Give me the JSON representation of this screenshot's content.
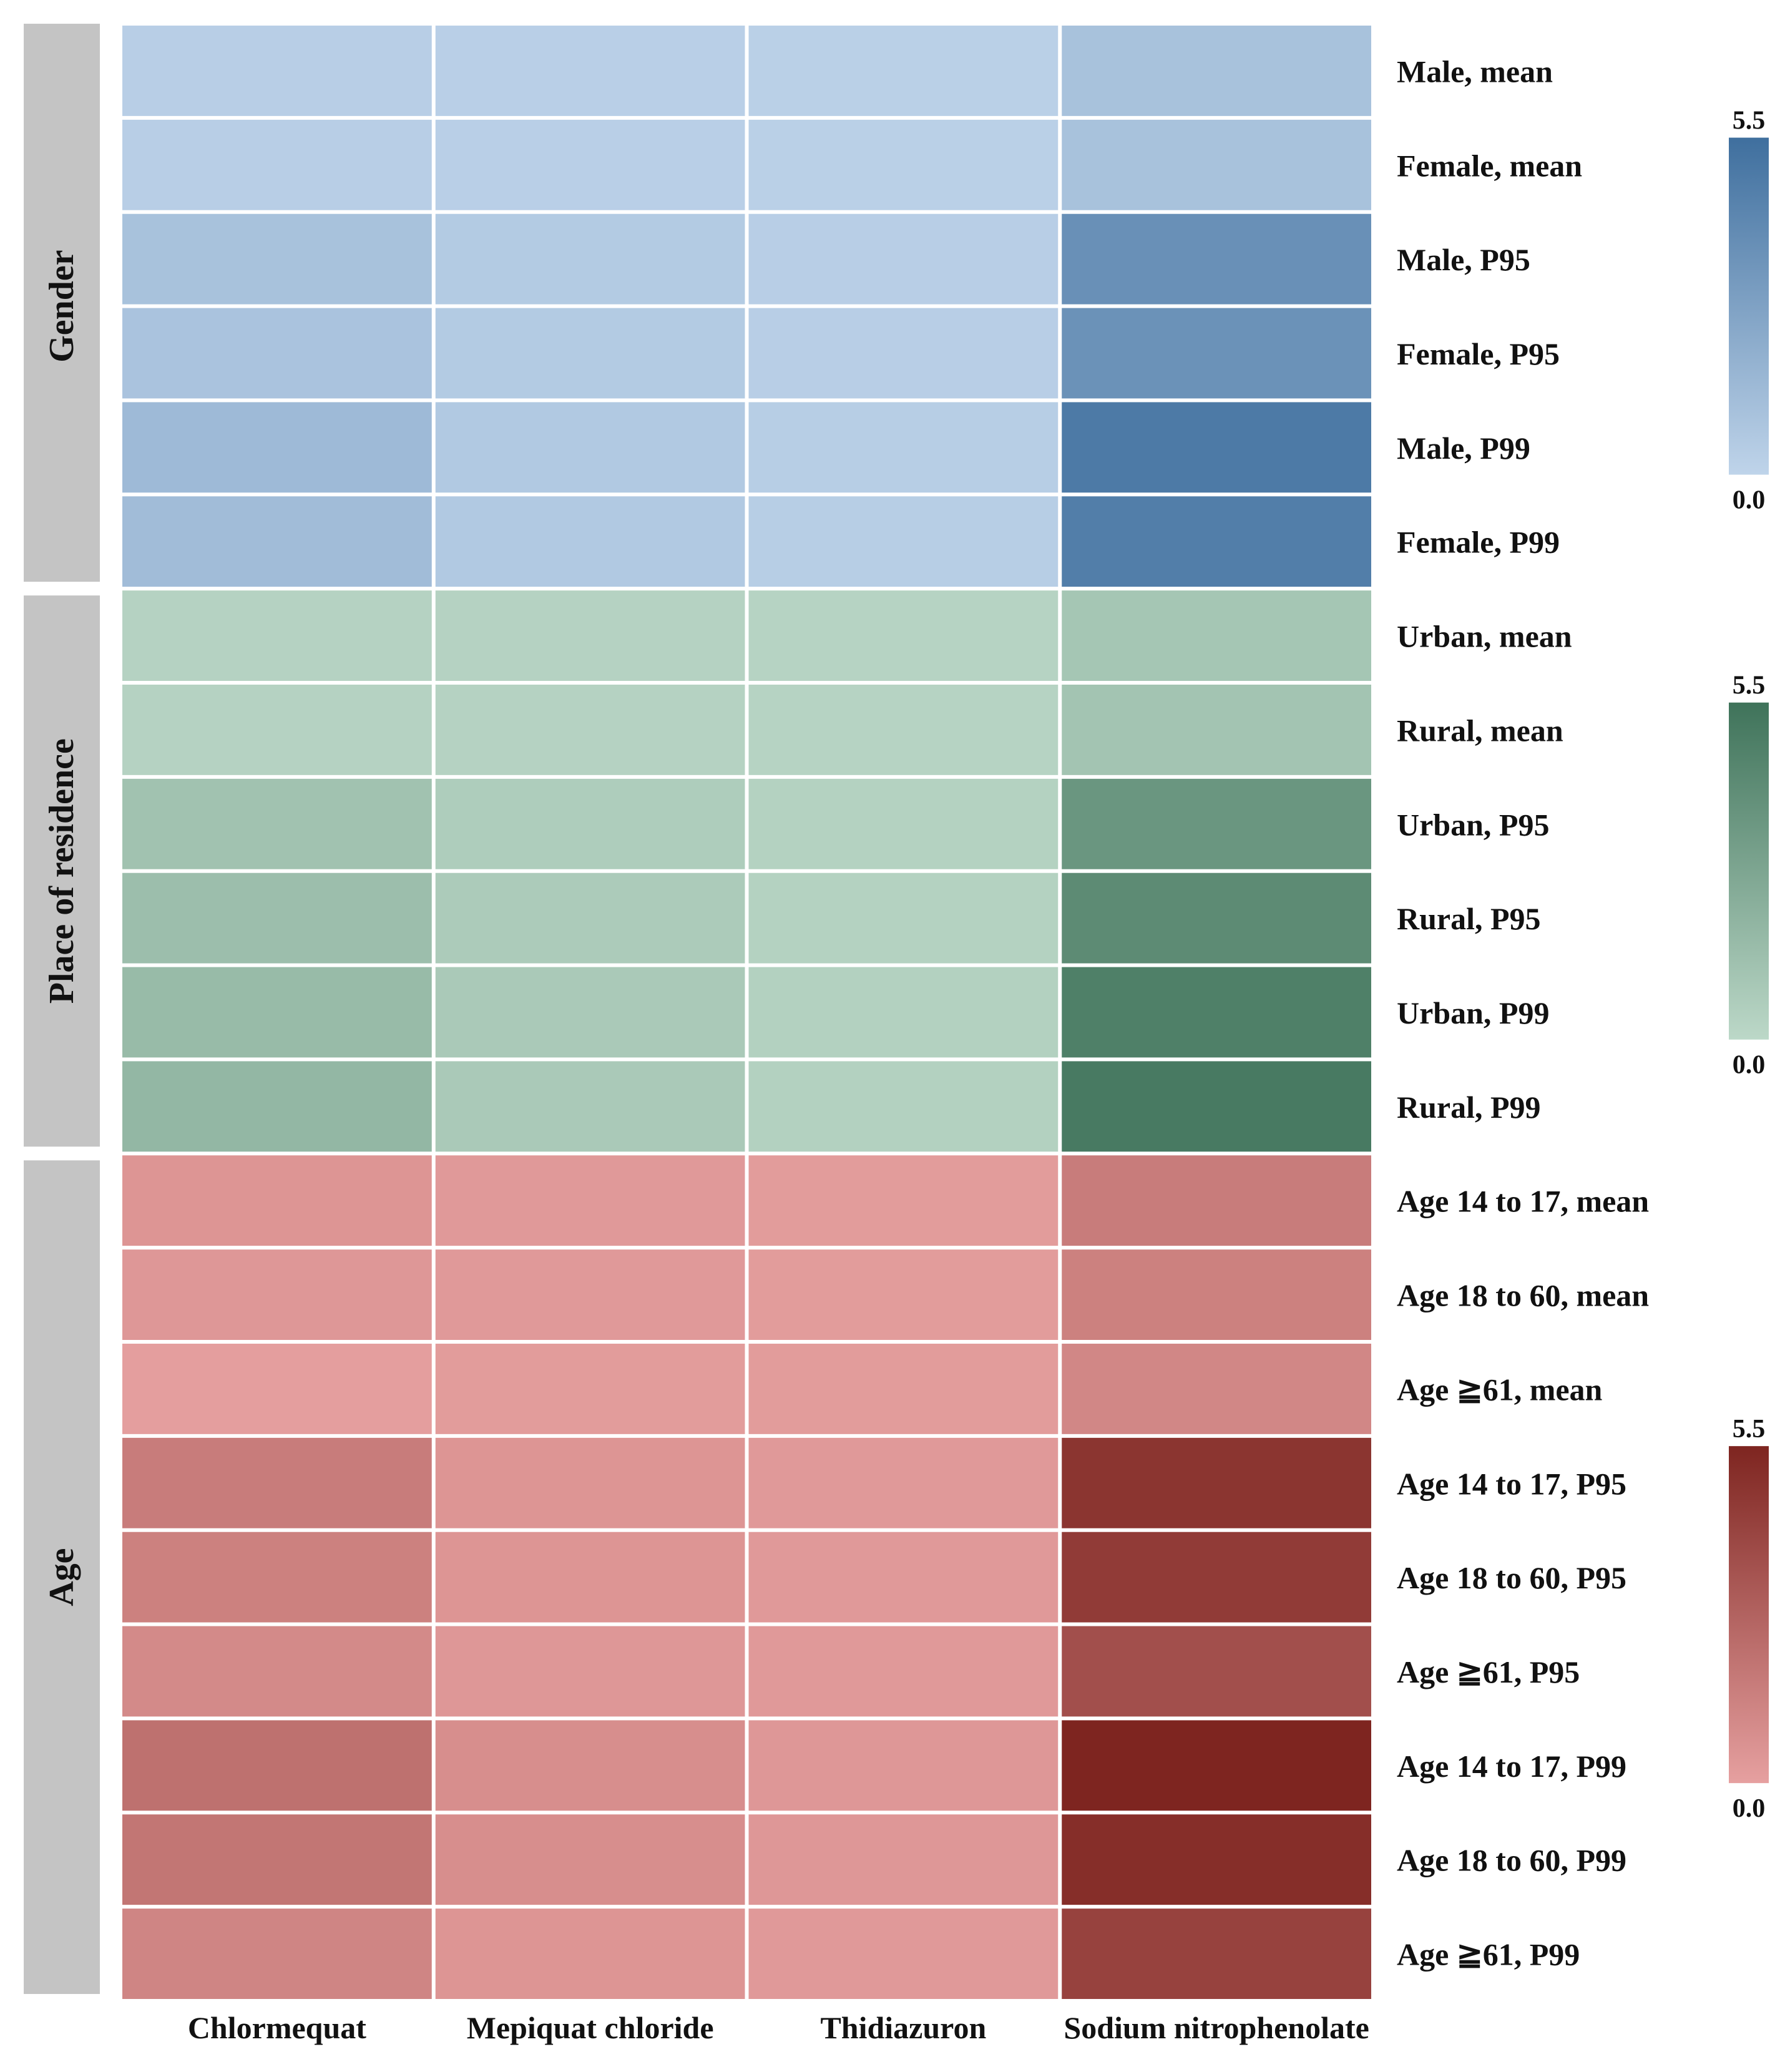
{
  "chart_data": {
    "type": "heatmap",
    "title": "",
    "columns": [
      "Chlormequat",
      "Mepiquat chloride",
      "Thidiazuron",
      "Sodium nitrophenolate"
    ],
    "scale": {
      "min": 0.0,
      "max": 5.5,
      "min_label": "0.0",
      "max_label": "5.5"
    },
    "groups": [
      {
        "name": "Gender",
        "colors": {
          "low": "#bfd4ea",
          "high": "#3f6f9e"
        },
        "rows": [
          {
            "label": "Male, mean",
            "values": [
              0.3,
              0.25,
              0.2,
              1.0
            ]
          },
          {
            "label": "Female, mean",
            "values": [
              0.3,
              0.25,
              0.2,
              1.0
            ]
          },
          {
            "label": "Male, P95",
            "values": [
              1.0,
              0.5,
              0.3,
              3.7
            ]
          },
          {
            "label": "Female, P95",
            "values": [
              0.9,
              0.5,
              0.3,
              3.6
            ]
          },
          {
            "label": "Male, P99",
            "values": [
              1.4,
              0.6,
              0.35,
              4.9
            ]
          },
          {
            "label": "Female, P99",
            "values": [
              1.3,
              0.6,
              0.35,
              4.7
            ]
          }
        ]
      },
      {
        "name": "Place of residence",
        "colors": {
          "low": "#bcd8c8",
          "high": "#3f735a"
        },
        "rows": [
          {
            "label": "Urban, mean",
            "values": [
              0.3,
              0.3,
              0.25,
              1.0
            ]
          },
          {
            "label": "Rural, mean",
            "values": [
              0.3,
              0.3,
              0.25,
              1.1
            ]
          },
          {
            "label": "Urban, P95",
            "values": [
              1.2,
              0.6,
              0.35,
              3.6
            ]
          },
          {
            "label": "Rural, P95",
            "values": [
              1.4,
              0.7,
              0.35,
              4.2
            ]
          },
          {
            "label": "Urban, P99",
            "values": [
              1.6,
              0.8,
              0.4,
              4.8
            ]
          },
          {
            "label": "Rural, P99",
            "values": [
              1.8,
              0.8,
              0.4,
              5.1
            ]
          }
        ]
      },
      {
        "name": "Age",
        "colors": {
          "low": "#e6a0a0",
          "high": "#7e2520"
        },
        "rows": [
          {
            "label": "Age 14 to 17, mean",
            "values": [
              0.5,
              0.3,
              0.2,
              1.6
            ]
          },
          {
            "label": "Age 18 to 60, mean",
            "values": [
              0.4,
              0.3,
              0.2,
              1.4
            ]
          },
          {
            "label": "Age ≧61, mean",
            "values": [
              0.1,
              0.2,
              0.2,
              1.1
            ]
          },
          {
            "label": "Age 14 to 17, P95",
            "values": [
              1.6,
              0.5,
              0.3,
              4.8
            ]
          },
          {
            "label": "Age 18 to 60, P95",
            "values": [
              1.4,
              0.5,
              0.3,
              4.5
            ]
          },
          {
            "label": "Age ≧61, P95",
            "values": [
              1.0,
              0.4,
              0.3,
              3.6
            ]
          },
          {
            "label": "Age 14 to 17, P99",
            "values": [
              2.1,
              0.8,
              0.4,
              5.5
            ]
          },
          {
            "label": "Age 18 to 60, P99",
            "values": [
              1.9,
              0.8,
              0.4,
              5.1
            ]
          },
          {
            "label": "Age ≧61, P99",
            "values": [
              1.2,
              0.5,
              0.3,
              4.2
            ]
          }
        ]
      }
    ]
  }
}
